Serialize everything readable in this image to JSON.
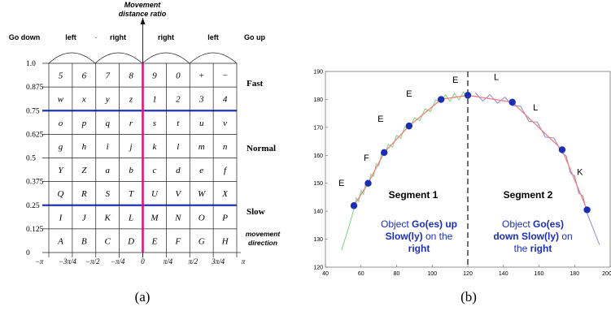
{
  "panel_a": {
    "label": "(a)",
    "top_title": [
      "Movement",
      "distance ratio"
    ],
    "header": {
      "go_down": "Go down",
      "left_1": "left",
      "right_1": "right",
      "right_2": "right",
      "left_2": "left",
      "go_up": "Go up"
    },
    "y_ticks": [
      "1.0",
      "0.875",
      "0.75",
      "0.625",
      "0.5",
      "0.375",
      "0.25",
      "0.125",
      "0"
    ],
    "rows": [
      [
        "5",
        "6",
        "7",
        "8",
        "9",
        "0",
        "+",
        "−"
      ],
      [
        "w",
        "x",
        "y",
        "z",
        "1",
        "2",
        "3",
        "4"
      ],
      [
        "o",
        "p",
        "q",
        "r",
        "s",
        "t",
        "u",
        "v"
      ],
      [
        "g",
        "h",
        "i",
        "j",
        "k",
        "l",
        "m",
        "n"
      ],
      [
        "Y",
        "Z",
        "a",
        "b",
        "c",
        "d",
        "e",
        "f"
      ],
      [
        "Q",
        "R",
        "S",
        "T",
        "U",
        "V",
        "W",
        "X"
      ],
      [
        "I",
        "J",
        "K",
        "L",
        "M",
        "N",
        "O",
        "P"
      ],
      [
        "A",
        "B",
        "C",
        "D",
        "E",
        "F",
        "G",
        "H"
      ]
    ],
    "speed_labels": {
      "fast": "Fast",
      "normal": "Normal",
      "slow": "Slow"
    },
    "movement_direction": [
      "movement",
      "direction"
    ],
    "x_ticks": [
      "−π",
      "−3π/4",
      "−π/2",
      "−π/4",
      "0",
      "π/4",
      "π/2",
      "3π/4",
      "π"
    ],
    "colors": {
      "axis": "#e0157a",
      "threshold": "#1f35b5",
      "grid": "#222222"
    }
  },
  "panel_b": {
    "label": "(b)",
    "chart_data": {
      "type": "line",
      "x_ticks": [
        40,
        60,
        80,
        100,
        120,
        140,
        160,
        180,
        200
      ],
      "y_ticks": [
        120,
        130,
        140,
        150,
        160,
        170,
        180,
        190
      ],
      "xlim": [
        40,
        200
      ],
      "ylim": [
        120,
        190
      ],
      "split_x": 120,
      "points": [
        {
          "x": 56,
          "y": 142
        },
        {
          "x": 64,
          "y": 150
        },
        {
          "x": 73,
          "y": 161
        },
        {
          "x": 87,
          "y": 170.5
        },
        {
          "x": 105,
          "y": 180
        },
        {
          "x": 120,
          "y": 181.5
        },
        {
          "x": 145,
          "y": 179
        },
        {
          "x": 173,
          "y": 162
        },
        {
          "x": 187,
          "y": 140.5
        }
      ],
      "letters": [
        {
          "text": "E",
          "x": 49,
          "y": 149
        },
        {
          "text": "F",
          "x": 63,
          "y": 158
        },
        {
          "text": "E",
          "x": 71,
          "y": 172
        },
        {
          "text": "E",
          "x": 87,
          "y": 181
        },
        {
          "text": "E",
          "x": 113,
          "y": 186
        },
        {
          "text": "L",
          "x": 136,
          "y": 187
        },
        {
          "text": "L",
          "x": 158,
          "y": 176
        },
        {
          "text": "K",
          "x": 183,
          "y": 153
        }
      ],
      "segment_1": "Segment 1",
      "segment_2": "Segment 2",
      "caption_left": {
        "l1a": "Object ",
        "l1b": "Go(es) up",
        "l2a": "Slow(ly)",
        "l2b": " on the",
        "l3": "right"
      },
      "caption_right": {
        "l1": "Object ",
        "l1b": "Go(es)",
        "l2a": "down ",
        "l2b": "Slow(ly)",
        "l2c": " on",
        "l3a": "the ",
        "l3b": "right"
      },
      "colors": {
        "point": "#1c2fb3",
        "fit": "#f08080",
        "raw_left": "#7fd37f",
        "raw_right": "#8a86d6",
        "text": "#1c2fb3"
      }
    }
  }
}
